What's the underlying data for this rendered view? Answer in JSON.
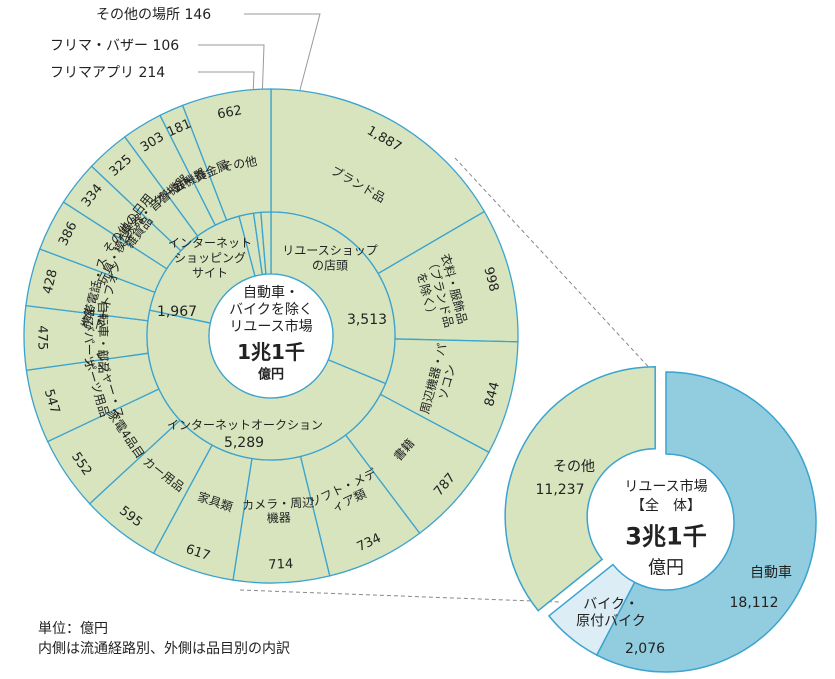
{
  "chart_data": [
    {
      "type": "pie",
      "title": "リユース市場【全　体】",
      "total": "3兆1千",
      "unit": "億円",
      "slices": [
        {
          "label": "自動車",
          "value": "18,112",
          "num": 18112,
          "color": "#92cddf"
        },
        {
          "label": "バイク・原付バイク",
          "value": "2,076",
          "num": 2076,
          "color": "#dcedf5"
        },
        {
          "label": "その他",
          "value": "11,237",
          "num": 11237,
          "color": "#d7e4bd"
        }
      ]
    },
    {
      "type": "pie",
      "title": "自動車・バイクを除くリユース市場",
      "total": "1兆1千",
      "unit": "億円",
      "inner_ring": [
        {
          "label": "リユースショップの店頭",
          "value": "3,513",
          "num": 3513
        },
        {
          "label": "インターネットオークション",
          "value": "5,289",
          "num": 5289
        },
        {
          "label": "インターネットショッピングサイト",
          "value": "1,967",
          "num": 1967
        },
        {
          "label": "フリマアプリ",
          "value": "214",
          "num": 214
        },
        {
          "label": "フリマ・バザー",
          "value": "106",
          "num": 106
        },
        {
          "label": "その他の場所",
          "value": "146",
          "num": 146
        }
      ],
      "outer_ring": [
        {
          "label": "ブランド品",
          "value": "1,887",
          "num": 1887
        },
        {
          "label": "衣料・服飾品（ブランド品を除く）",
          "value": "998",
          "num": 998
        },
        {
          "label": "周辺機器・パソコン",
          "value": "844",
          "num": 844
        },
        {
          "label": "書籍",
          "value": "787",
          "num": 787
        },
        {
          "label": "ソフト・メディア類",
          "value": "734",
          "num": 734
        },
        {
          "label": "カメラ・周辺機器",
          "value": "714",
          "num": 714
        },
        {
          "label": "家具類",
          "value": "617",
          "num": 617
        },
        {
          "label": "カー用品",
          "value": "595",
          "num": 595
        },
        {
          "label": "家電4品目",
          "value": "552",
          "num": 552
        },
        {
          "label": "レジャー・スポーツ用品",
          "value": "547",
          "num": 547
        },
        {
          "label": "自転車・部品及びパーツ",
          "value": "475",
          "num": 475
        },
        {
          "label": "携帯電話・スマートフォン",
          "value": "428",
          "num": 428
        },
        {
          "label": "玩具・模型",
          "value": "386",
          "num": 386
        },
        {
          "label": "その他の日用雑貨品",
          "value": "334",
          "num": 334
        },
        {
          "label": "楽器・音響機器",
          "value": "325",
          "num": 325
        },
        {
          "label": "ゲーム機器",
          "value": "303",
          "num": 303
        },
        {
          "label": "金・貴金属",
          "value": "181",
          "num": 181
        },
        {
          "label": "その他",
          "value": "662",
          "num": 662
        }
      ]
    }
  ],
  "notes": {
    "line1": "単位：億円",
    "line2": "内側は流通経路別、外側は品目別の内訳"
  }
}
